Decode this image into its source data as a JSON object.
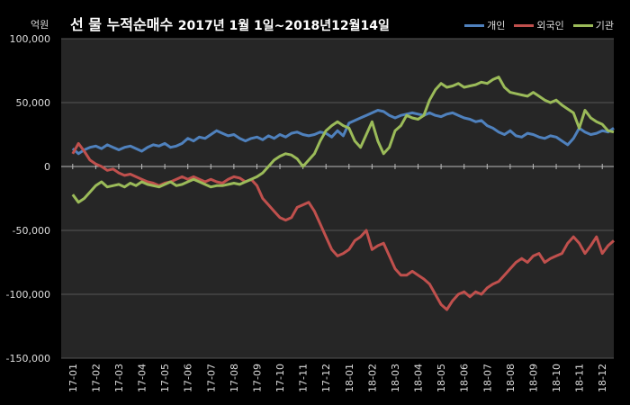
{
  "header": {
    "unit": "억원",
    "title_main": "선 물 누적순매수",
    "title_period": "2017년 1월 1일~2018년12월14일"
  },
  "legend": [
    {
      "name": "개인",
      "color": "#4f81bd"
    },
    {
      "name": "외국인",
      "color": "#c0504d"
    },
    {
      "name": "기관",
      "color": "#9bbb59"
    }
  ],
  "chart_data": {
    "type": "line",
    "title": "선 물 누적순매수 2017년 1월 1일~2018년12월14일",
    "ylabel": "억원",
    "ylim": [
      -150000,
      100000
    ],
    "yticks": [
      100000,
      50000,
      0,
      -50000,
      -100000,
      -150000
    ],
    "ytick_labels": [
      "100,000",
      "50,000",
      "0",
      "-50,000",
      "-100,000",
      "-150,000"
    ],
    "grid": true,
    "legend_position": "top-right",
    "categories": [
      "17-01",
      "17-02",
      "17-03",
      "17-04",
      "17-05",
      "17-06",
      "17-07",
      "17-08",
      "17-09",
      "17-10",
      "17-11",
      "17-12",
      "18-01",
      "18-02",
      "18-03",
      "18-04",
      "18-05",
      "18-06",
      "18-07",
      "18-08",
      "18-09",
      "18-10",
      "18-11",
      "18-12"
    ],
    "x": [
      0,
      0.25,
      0.5,
      0.75,
      1,
      1.25,
      1.5,
      1.75,
      2,
      2.25,
      2.5,
      2.75,
      3,
      3.25,
      3.5,
      3.75,
      4,
      4.25,
      4.5,
      4.75,
      5,
      5.25,
      5.5,
      5.75,
      6,
      6.25,
      6.5,
      6.75,
      7,
      7.25,
      7.5,
      7.75,
      8,
      8.25,
      8.5,
      8.75,
      9,
      9.25,
      9.5,
      9.75,
      10,
      10.25,
      10.5,
      10.75,
      11,
      11.25,
      11.5,
      11.75,
      12,
      12.25,
      12.5,
      12.75,
      13,
      13.25,
      13.5,
      13.75,
      14,
      14.25,
      14.5,
      14.75,
      15,
      15.25,
      15.5,
      15.75,
      16,
      16.25,
      16.5,
      16.75,
      17,
      17.25,
      17.5,
      17.75,
      18,
      18.25,
      18.5,
      18.75,
      19,
      19.25,
      19.5,
      19.75,
      20,
      20.25,
      20.5,
      20.75,
      21,
      21.25,
      21.5,
      21.75,
      22,
      22.25,
      22.5,
      22.75,
      23,
      23.25,
      23.5
    ],
    "series": [
      {
        "name": "개인",
        "color": "#4f81bd",
        "values": [
          14000,
          10000,
          13000,
          15000,
          16000,
          14000,
          17000,
          15000,
          13000,
          15000,
          16000,
          14000,
          12000,
          15000,
          17000,
          16000,
          18000,
          15000,
          16000,
          18000,
          22000,
          20000,
          23000,
          22000,
          25000,
          28000,
          26000,
          24000,
          25000,
          22000,
          20000,
          22000,
          23000,
          21000,
          24000,
          22000,
          25000,
          23000,
          26000,
          27000,
          25000,
          24000,
          25000,
          27000,
          26000,
          23000,
          28000,
          24000,
          34000,
          36000,
          38000,
          40000,
          42000,
          44000,
          43000,
          40000,
          38000,
          40000,
          41000,
          42000,
          41000,
          40000,
          42000,
          40000,
          39000,
          41000,
          42000,
          40000,
          38000,
          37000,
          35000,
          36000,
          32000,
          30000,
          27000,
          25000,
          28000,
          24000,
          23000,
          26000,
          25000,
          23000,
          22000,
          24000,
          23000,
          20000,
          17000,
          22000,
          30000,
          27000,
          25000,
          26000,
          28000,
          27000,
          30000
        ]
      },
      {
        "name": "외국인",
        "color": "#c0504d",
        "values": [
          10000,
          18000,
          12000,
          5000,
          2000,
          0,
          -3000,
          -2000,
          -5000,
          -7000,
          -6000,
          -8000,
          -10000,
          -12000,
          -13000,
          -15000,
          -13000,
          -12000,
          -10000,
          -8000,
          -10000,
          -8000,
          -10000,
          -12000,
          -10000,
          -12000,
          -13000,
          -10000,
          -8000,
          -9000,
          -12000,
          -10000,
          -15000,
          -25000,
          -30000,
          -35000,
          -40000,
          -42000,
          -40000,
          -32000,
          -30000,
          -28000,
          -35000,
          -45000,
          -55000,
          -65000,
          -70000,
          -68000,
          -65000,
          -58000,
          -55000,
          -50000,
          -65000,
          -62000,
          -60000,
          -70000,
          -80000,
          -85000,
          -85000,
          -82000,
          -85000,
          -88000,
          -92000,
          -100000,
          -108000,
          -112000,
          -105000,
          -100000,
          -98000,
          -102000,
          -98000,
          -100000,
          -95000,
          -92000,
          -90000,
          -85000,
          -80000,
          -75000,
          -72000,
          -75000,
          -70000,
          -68000,
          -75000,
          -72000,
          -70000,
          -68000,
          -60000,
          -55000,
          -60000,
          -68000,
          -62000,
          -55000,
          -68000,
          -62000,
          -58000
        ]
      },
      {
        "name": "기관",
        "color": "#9bbb59",
        "values": [
          -22000,
          -28000,
          -25000,
          -20000,
          -15000,
          -12000,
          -16000,
          -15000,
          -14000,
          -16000,
          -13000,
          -15000,
          -12000,
          -14000,
          -15000,
          -16000,
          -14000,
          -12000,
          -15000,
          -14000,
          -12000,
          -10000,
          -12000,
          -14000,
          -16000,
          -15000,
          -15000,
          -14000,
          -13000,
          -14000,
          -12000,
          -10000,
          -8000,
          -5000,
          0,
          5000,
          8000,
          10000,
          9000,
          6000,
          0,
          5000,
          10000,
          20000,
          28000,
          32000,
          35000,
          32000,
          30000,
          20000,
          15000,
          25000,
          35000,
          20000,
          10000,
          15000,
          28000,
          32000,
          40000,
          38000,
          37000,
          40000,
          52000,
          60000,
          65000,
          62000,
          63000,
          65000,
          62000,
          63000,
          64000,
          66000,
          65000,
          68000,
          70000,
          62000,
          58000,
          57000,
          56000,
          55000,
          58000,
          55000,
          52000,
          50000,
          52000,
          48000,
          45000,
          42000,
          30000,
          44000,
          38000,
          35000,
          33000,
          28000,
          27000
        ]
      }
    ]
  }
}
